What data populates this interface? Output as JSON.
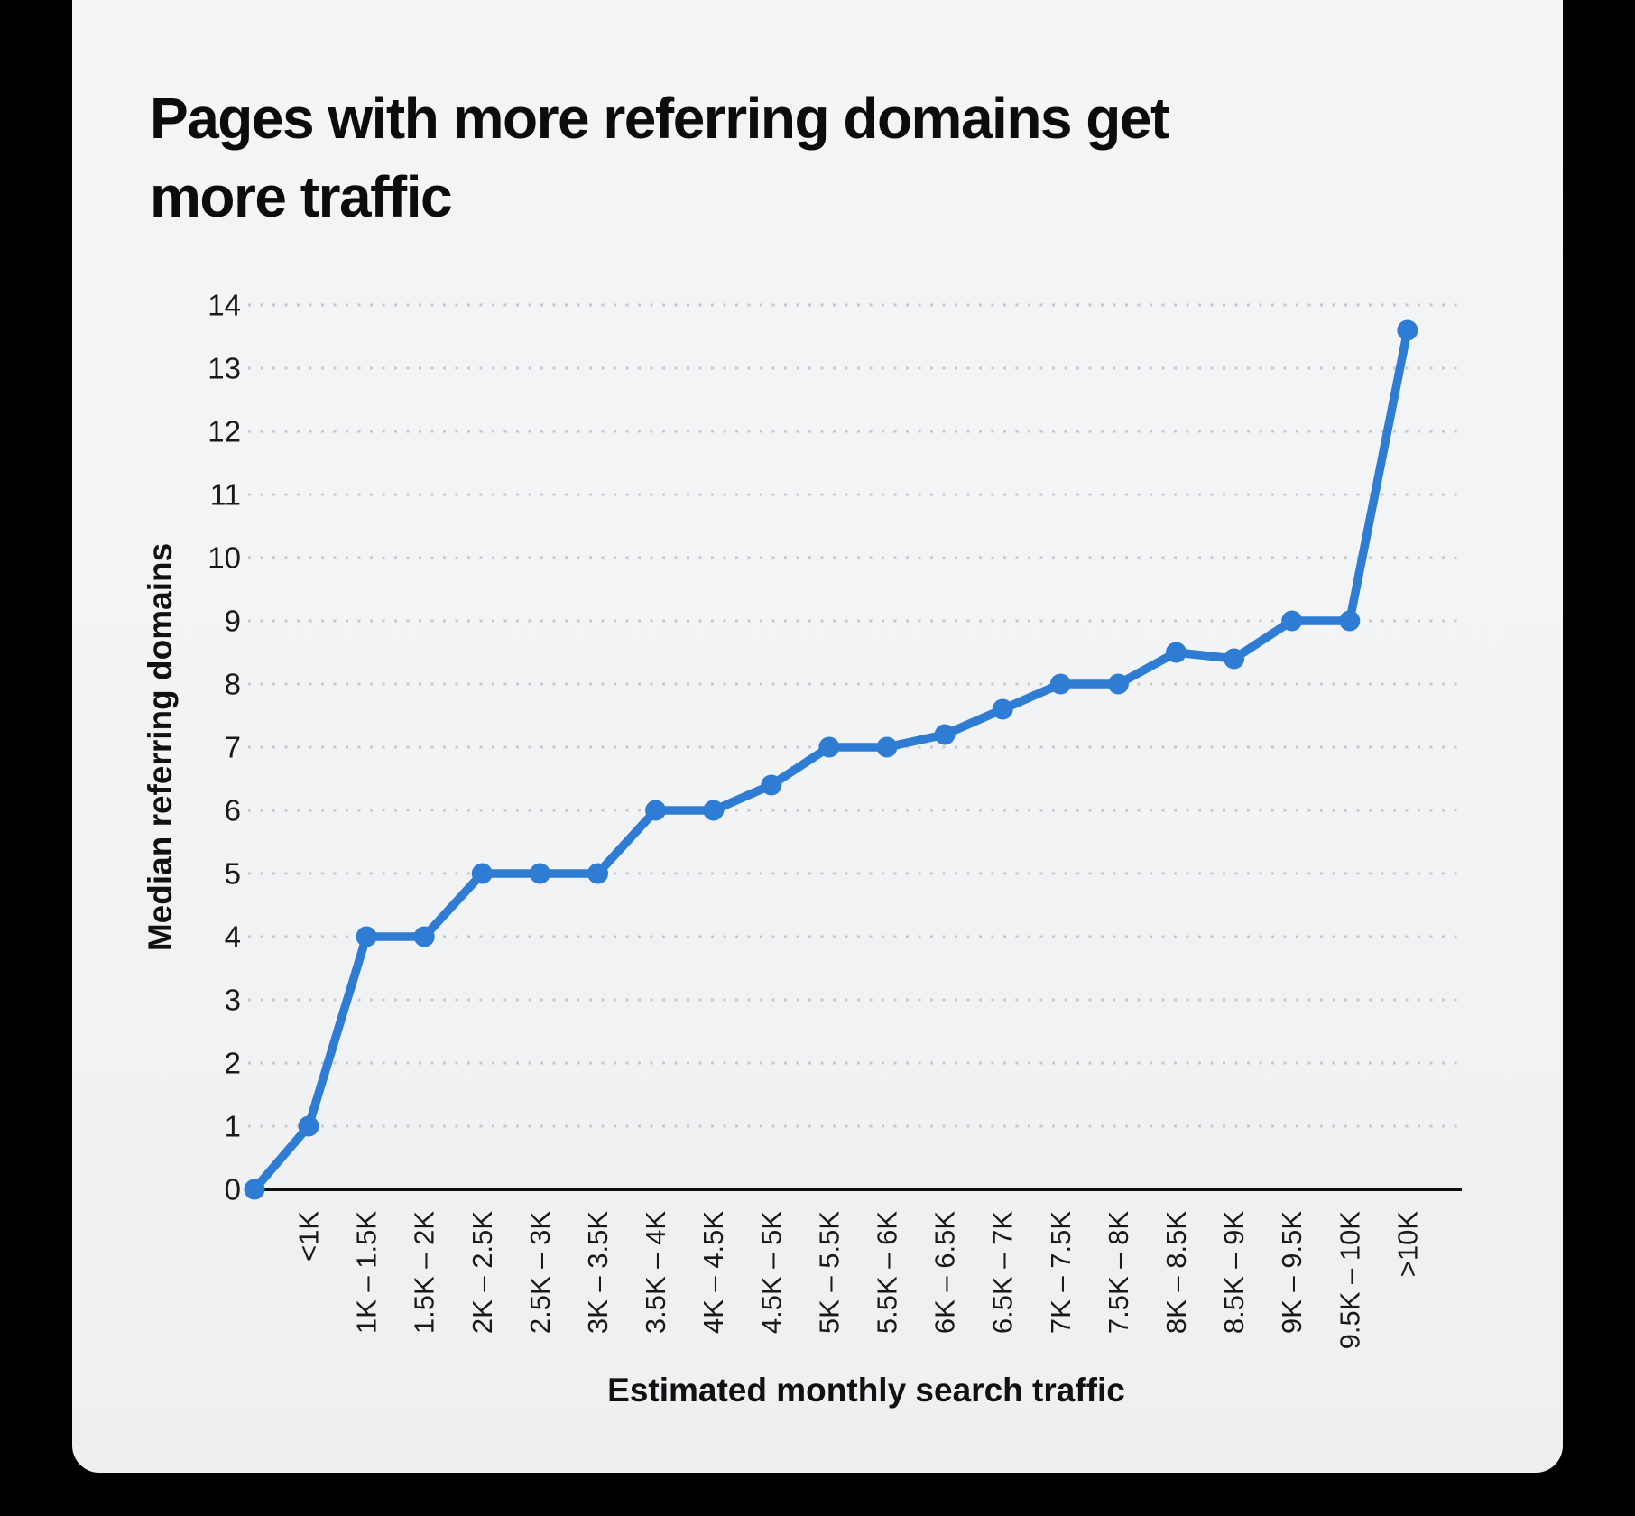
{
  "page": {
    "background_color": "#000000"
  },
  "card": {
    "background_color": "#f2f3f5",
    "corner_style": "rounded-bottom"
  },
  "chart_data": {
    "type": "line",
    "title": "Pages with more referring domains get more traffic",
    "xlabel": "Estimated monthly search traffic",
    "ylabel": "Median referring domains",
    "categories": [
      "<1K",
      "1K – 1.5K",
      "1.5K – 2K",
      "2K – 2.5K",
      "2.5K – 3K",
      "3K – 3.5K",
      "3.5K – 4K",
      "4K – 4.5K",
      "4.5K – 5K",
      "5K – 5.5K",
      "5.5K – 6K",
      "6K – 6.5K",
      "6.5K – 7K",
      "7K – 7.5K",
      "7.5K – 8K",
      "8K – 8.5K",
      "8.5K – 9K",
      "9K – 9.5K",
      "9.5K – 10K",
      ">10K"
    ],
    "series": [
      {
        "name": "Median referring domains",
        "values": [
          1,
          4,
          4,
          5,
          5,
          5,
          6,
          6,
          6.4,
          7,
          7,
          7.2,
          7.6,
          8,
          8,
          8.5,
          8.4,
          9,
          9,
          13.6
        ]
      }
    ],
    "origin_point_value": 0,
    "ylim": [
      0,
      14
    ],
    "ytick_step": 1,
    "grid": "horizontal-dotted",
    "legend_position": "none",
    "marker": "circle",
    "colors": {
      "line": "#2e7cd3",
      "marker": "#2e7cd3",
      "grid_dots": "#c9cacd",
      "axis_line": "#0f0f10",
      "tick_text": "#19191b",
      "axis_title_text": "#111113",
      "title_text": "#0c0c0d"
    }
  }
}
